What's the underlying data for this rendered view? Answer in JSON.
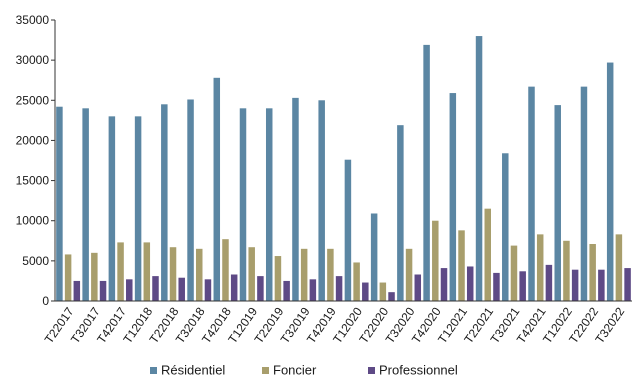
{
  "chart_data": {
    "type": "bar",
    "categories": [
      "T22017",
      "T32017",
      "T42017",
      "T12018",
      "T22018",
      "T32018",
      "T42018",
      "T12019",
      "T22019",
      "T32019",
      "T42019",
      "T12020",
      "T22020",
      "T32020",
      "T42020",
      "T12021",
      "T22021",
      "T32021",
      "T42021",
      "T12022",
      "T22022",
      "T32022"
    ],
    "series": [
      {
        "name": "Résidentiel",
        "color": "#5b86a3",
        "values": [
          24200,
          24000,
          23000,
          23000,
          24500,
          25100,
          27800,
          24000,
          24000,
          25300,
          25000,
          17600,
          10900,
          21900,
          31900,
          25900,
          33000,
          18400,
          26700,
          24400,
          26700,
          29700
        ]
      },
      {
        "name": "Foncier",
        "color": "#a89e6c",
        "values": [
          5800,
          6000,
          7300,
          7300,
          6700,
          6500,
          7700,
          6700,
          5600,
          6500,
          6500,
          4800,
          2300,
          6500,
          10000,
          8800,
          11500,
          6900,
          8300,
          7500,
          7100,
          8300
        ]
      },
      {
        "name": "Professionnel",
        "color": "#5e4a86",
        "values": [
          2500,
          2500,
          2700,
          3100,
          2900,
          2700,
          3300,
          3100,
          2500,
          2700,
          3100,
          2300,
          1100,
          3300,
          4100,
          4300,
          3500,
          3700,
          4500,
          3900,
          3900,
          4100
        ]
      }
    ],
    "ylim": [
      0,
      35000
    ],
    "yticks": [
      "0",
      "5000",
      "10000",
      "15000",
      "20000",
      "25000",
      "30000",
      "35000"
    ],
    "grid": false,
    "legend_position": "bottom"
  }
}
